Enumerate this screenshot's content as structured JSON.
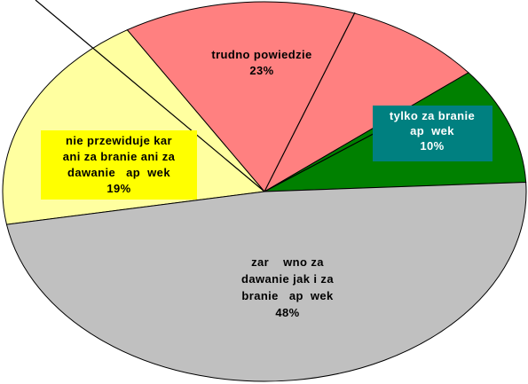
{
  "chart_data": {
    "type": "pie",
    "title": "",
    "unit": "%",
    "colors": {
      "yellow": "#ffffa0",
      "pink": "#ff8080",
      "green": "#008000",
      "gray": "#c0c0c0",
      "teal": "#008080",
      "label_yellow": "#ffff00",
      "outline": "#000000"
    },
    "slices": [
      {
        "category": "nie przewiduje kar ani za branie ani za dawanie  ap  wek",
        "value": 19,
        "label_lines": [
          "nie przewiduje kar",
          "ani za branie ani za",
          "dawanie   ap  wek",
          "19%"
        ],
        "color": "#ffffa0"
      },
      {
        "category": "trudno powiedzie",
        "value": 23,
        "label_lines": [
          "trudno powiedzie",
          "23%"
        ],
        "color": "#ff8080"
      },
      {
        "category": "tylko za branie  ap  wek",
        "value": 10,
        "label_lines": [
          "tylko za branie",
          "ap  wek",
          "10%"
        ],
        "color": "#008000"
      },
      {
        "category": "zar   wno za dawanie jak i za branie  ap  wek",
        "value": 48,
        "label_lines": [
          "zar    wno za",
          "dawanie jak i za",
          "branie   ap  wek",
          "48%"
        ],
        "color": "#c0c0c0"
      }
    ]
  }
}
